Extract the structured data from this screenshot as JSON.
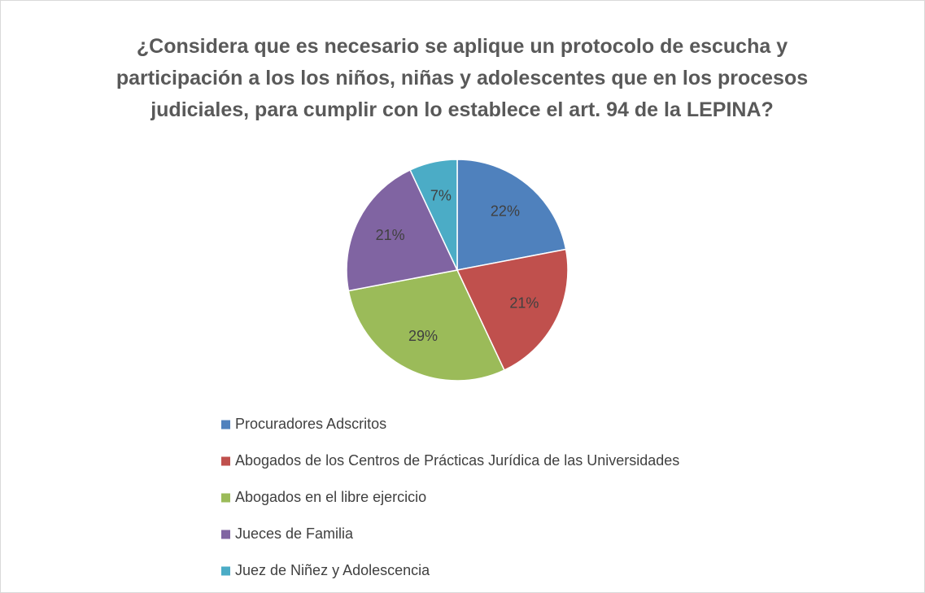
{
  "chart_data": {
    "type": "pie",
    "title": "¿Considera que es necesario se aplique un protocolo de escucha y participación a los los niños, niñas y adolescentes que en los procesos judiciales, para cumplir con lo establece el art. 94 de la LEPINA?",
    "categories": [
      "Procuradores Adscritos",
      "Abogados de los Centros de Prácticas Jurídica de las Universidades",
      "Abogados en el libre ejercicio",
      "Jueces de Familia",
      "Juez de Niñez y Adolescencia"
    ],
    "values": [
      22,
      21,
      29,
      21,
      7
    ],
    "value_labels": [
      "22%",
      "21%",
      "29%",
      "21%",
      "7%"
    ],
    "colors": [
      "#4f81bd",
      "#c0504d",
      "#9bbb59",
      "#8064a2",
      "#4bacc6"
    ],
    "legend": "bottom"
  }
}
